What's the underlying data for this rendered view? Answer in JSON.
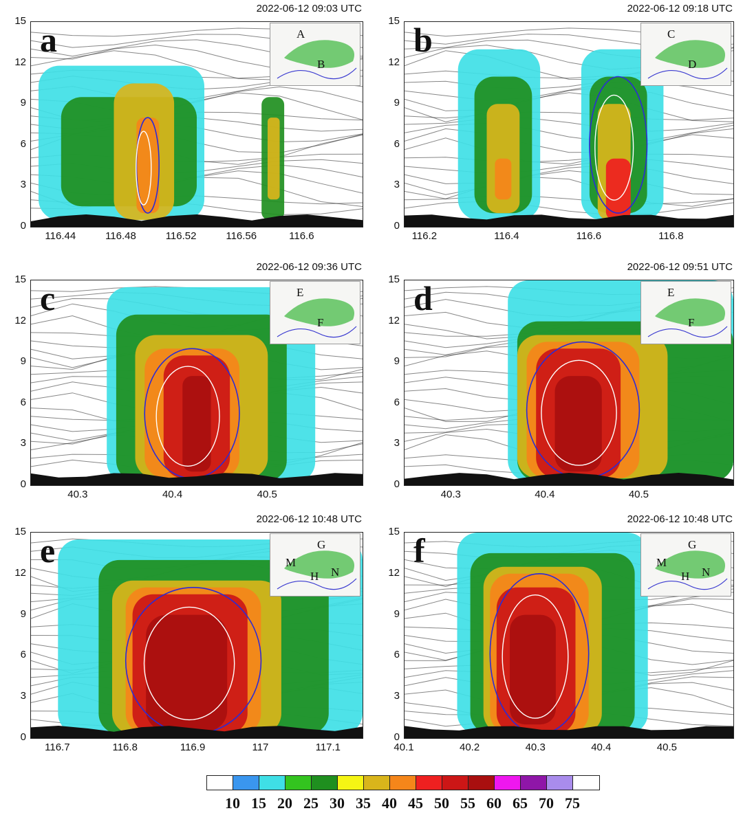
{
  "chart_data": [
    {
      "type": "heatmap",
      "panel": "a",
      "timestamp": "2022-06-12 09:03 UTC",
      "ylim": [
        0,
        15
      ],
      "yticks": [
        "0",
        "3",
        "6",
        "9",
        "12",
        "15"
      ],
      "xlim": [
        116.42,
        116.64
      ],
      "xticks": [
        {
          "v": 116.44,
          "t": "116.44"
        },
        {
          "v": 116.48,
          "t": "116.48"
        },
        {
          "v": 116.52,
          "t": "116.52"
        },
        {
          "v": 116.56,
          "t": "116.56"
        },
        {
          "v": 116.6,
          "t": "116.6"
        }
      ],
      "inset_labels": [
        "A",
        "B"
      ],
      "cells": [
        {
          "x": [
            116.425,
            116.535
          ],
          "y": [
            0.5,
            11.8
          ],
          "level": 15
        },
        {
          "x": [
            116.44,
            116.53
          ],
          "y": [
            1.5,
            9.5
          ],
          "level": 25
        },
        {
          "x": [
            116.475,
            116.515
          ],
          "y": [
            0.5,
            10.5
          ],
          "level": 35
        },
        {
          "x": [
            116.49,
            116.505
          ],
          "y": [
            1,
            8
          ],
          "level": 40
        },
        {
          "x": [
            116.573,
            116.588
          ],
          "y": [
            0.5,
            9.5
          ],
          "level": 25
        },
        {
          "x": [
            116.577,
            116.585
          ],
          "y": [
            2,
            8
          ],
          "level": 35
        }
      ]
    },
    {
      "type": "heatmap",
      "panel": "b",
      "timestamp": "2022-06-12 09:18 UTC",
      "ylim": [
        0,
        15
      ],
      "yticks": [
        "0",
        "3",
        "6",
        "9",
        "12",
        "15"
      ],
      "xlim": [
        116.15,
        116.95
      ],
      "xticks": [
        {
          "v": 116.2,
          "t": "116.2"
        },
        {
          "v": 116.4,
          "t": "116.4"
        },
        {
          "v": 116.6,
          "t": "116.6"
        },
        {
          "v": 116.8,
          "t": "116.8"
        }
      ],
      "inset_labels": [
        "C",
        "D"
      ],
      "cells": [
        {
          "x": [
            116.28,
            116.48
          ],
          "y": [
            0.5,
            13
          ],
          "level": 15
        },
        {
          "x": [
            116.32,
            116.46
          ],
          "y": [
            1,
            11
          ],
          "level": 25
        },
        {
          "x": [
            116.35,
            116.43
          ],
          "y": [
            1,
            9
          ],
          "level": 35
        },
        {
          "x": [
            116.37,
            116.41
          ],
          "y": [
            2,
            5
          ],
          "level": 40
        },
        {
          "x": [
            116.58,
            116.78
          ],
          "y": [
            0.5,
            13
          ],
          "level": 15
        },
        {
          "x": [
            116.6,
            116.74
          ],
          "y": [
            1,
            11
          ],
          "level": 25
        },
        {
          "x": [
            116.62,
            116.7
          ],
          "y": [
            0.5,
            9
          ],
          "level": 35
        },
        {
          "x": [
            116.64,
            116.7
          ],
          "y": [
            0.5,
            5
          ],
          "level": 45
        }
      ]
    },
    {
      "type": "heatmap",
      "panel": "c",
      "timestamp": "2022-06-12 09:36 UTC",
      "ylim": [
        0,
        15
      ],
      "yticks": [
        "0",
        "3",
        "6",
        "9",
        "12",
        "15"
      ],
      "xlim": [
        40.25,
        40.6
      ],
      "xticks": [
        {
          "v": 40.3,
          "t": "40.3"
        },
        {
          "v": 40.4,
          "t": "40.4"
        },
        {
          "v": 40.5,
          "t": "40.5"
        }
      ],
      "inset_labels": [
        "E",
        "F"
      ],
      "cells": [
        {
          "x": [
            40.33,
            40.55
          ],
          "y": [
            0.2,
            14.5
          ],
          "level": 15
        },
        {
          "x": [
            40.34,
            40.52
          ],
          "y": [
            0.3,
            12.5
          ],
          "level": 25
        },
        {
          "x": [
            40.36,
            40.5
          ],
          "y": [
            0.5,
            11
          ],
          "level": 35
        },
        {
          "x": [
            40.37,
            40.47
          ],
          "y": [
            0.5,
            10
          ],
          "level": 40
        },
        {
          "x": [
            40.39,
            40.46
          ],
          "y": [
            0.5,
            9.5
          ],
          "level": 50
        },
        {
          "x": [
            40.41,
            40.44
          ],
          "y": [
            1,
            8
          ],
          "level": 55
        }
      ]
    },
    {
      "type": "heatmap",
      "panel": "d",
      "timestamp": "2022-06-12 09:51 UTC",
      "ylim": [
        0,
        15
      ],
      "yticks": [
        "0",
        "3",
        "6",
        "9",
        "12",
        "15"
      ],
      "xlim": [
        40.25,
        40.6
      ],
      "xticks": [
        {
          "v": 40.3,
          "t": "40.3"
        },
        {
          "v": 40.4,
          "t": "40.4"
        },
        {
          "v": 40.5,
          "t": "40.5"
        }
      ],
      "inset_labels": [
        "E",
        "F"
      ],
      "cells": [
        {
          "x": [
            40.36,
            40.6
          ],
          "y": [
            0.3,
            15
          ],
          "level": 15
        },
        {
          "x": [
            40.37,
            40.6
          ],
          "y": [
            0.3,
            12
          ],
          "level": 25
        },
        {
          "x": [
            40.37,
            40.53
          ],
          "y": [
            0.5,
            11
          ],
          "level": 35
        },
        {
          "x": [
            40.38,
            40.5
          ],
          "y": [
            0.5,
            10.5
          ],
          "level": 40
        },
        {
          "x": [
            40.39,
            40.48
          ],
          "y": [
            0.5,
            10
          ],
          "level": 50
        },
        {
          "x": [
            40.41,
            40.46
          ],
          "y": [
            1,
            8
          ],
          "level": 55
        }
      ]
    },
    {
      "type": "heatmap",
      "panel": "e",
      "timestamp": "2022-06-12 10:48 UTC",
      "ylim": [
        0,
        15
      ],
      "yticks": [
        "0",
        "3",
        "6",
        "9",
        "12",
        "15"
      ],
      "xlim": [
        116.66,
        117.15
      ],
      "xticks": [
        {
          "v": 116.7,
          "t": "116.7"
        },
        {
          "v": 116.8,
          "t": "116.8"
        },
        {
          "v": 116.9,
          "t": "116.9"
        },
        {
          "v": 117,
          "t": "117"
        },
        {
          "v": 117.1,
          "t": "117.1"
        }
      ],
      "inset_labels": [
        "G",
        "M",
        "H",
        "N"
      ],
      "cells": [
        {
          "x": [
            116.7,
            117.15
          ],
          "y": [
            0.3,
            14.5
          ],
          "level": 15
        },
        {
          "x": [
            116.76,
            117.1
          ],
          "y": [
            0.3,
            13
          ],
          "level": 25
        },
        {
          "x": [
            116.78,
            117.03
          ],
          "y": [
            0.3,
            11.5
          ],
          "level": 35
        },
        {
          "x": [
            116.8,
            117.0
          ],
          "y": [
            0.3,
            11
          ],
          "level": 40
        },
        {
          "x": [
            116.81,
            116.98
          ],
          "y": [
            0.3,
            10.5
          ],
          "level": 50
        },
        {
          "x": [
            116.83,
            116.95
          ],
          "y": [
            0.5,
            9
          ],
          "level": 55
        }
      ]
    },
    {
      "type": "heatmap",
      "panel": "f",
      "timestamp": "2022-06-12 10:48 UTC",
      "ylim": [
        0,
        15
      ],
      "yticks": [
        "0",
        "3",
        "6",
        "9",
        "12",
        "15"
      ],
      "xlim": [
        40.1,
        40.6
      ],
      "xticks": [
        {
          "v": 40.1,
          "t": "40.1"
        },
        {
          "v": 40.2,
          "t": "40.2"
        },
        {
          "v": 40.3,
          "t": "40.3"
        },
        {
          "v": 40.4,
          "t": "40.4"
        },
        {
          "v": 40.5,
          "t": "40.5"
        }
      ],
      "inset_labels": [
        "G",
        "M",
        "H",
        "N"
      ],
      "cells": [
        {
          "x": [
            40.18,
            40.47
          ],
          "y": [
            0.3,
            15
          ],
          "level": 15
        },
        {
          "x": [
            40.2,
            40.45
          ],
          "y": [
            0.3,
            13.5
          ],
          "level": 25
        },
        {
          "x": [
            40.22,
            40.4
          ],
          "y": [
            0.3,
            12.5
          ],
          "level": 35
        },
        {
          "x": [
            40.23,
            40.38
          ],
          "y": [
            0.3,
            12
          ],
          "level": 40
        },
        {
          "x": [
            40.24,
            40.36
          ],
          "y": [
            0.3,
            11
          ],
          "level": 50
        },
        {
          "x": [
            40.26,
            40.33
          ],
          "y": [
            1,
            9
          ],
          "level": 55
        }
      ]
    }
  ],
  "colorbar": {
    "labels": [
      "10",
      "15",
      "20",
      "25",
      "30",
      "35",
      "40",
      "45",
      "50",
      "55",
      "60",
      "65",
      "70",
      "75"
    ],
    "colors": [
      "#ffffff",
      "#3a96ef",
      "#3fdfe6",
      "#33c41f",
      "#1f8f1f",
      "#f5f514",
      "#d9b51b",
      "#f5861a",
      "#ef2020",
      "#cc1616",
      "#a90f0f",
      "#ef17ef",
      "#8f16a8",
      "#a98cec",
      "#ffffff"
    ]
  }
}
